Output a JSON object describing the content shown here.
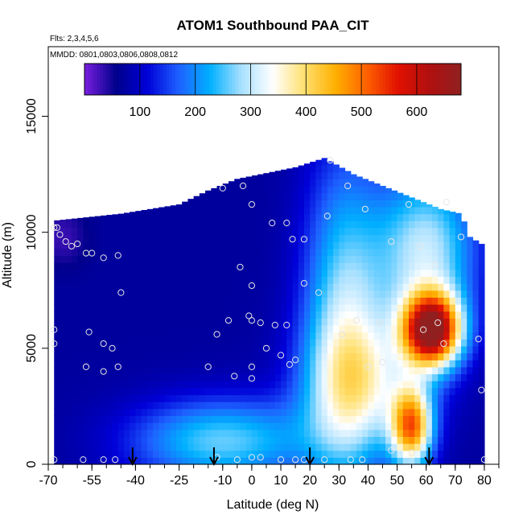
{
  "chart_data": {
    "type": "heatmap",
    "title": "ATOM1 Southbound PAA_CIT",
    "notes": [
      "Flts: 2,3,4,5,6",
      "MMDD: 0801,0803,0806,0808,0812"
    ],
    "xlabel": "Latitude (deg N)",
    "ylabel": "Altitude (m)",
    "xlim": [
      -70,
      85
    ],
    "ylim": [
      0,
      18000
    ],
    "x_ticks_major": [
      -70,
      -55,
      -40,
      -25,
      -10,
      0,
      10,
      20,
      30,
      40,
      50,
      60,
      70,
      80
    ],
    "x_tick_labels": [
      "-70",
      "-55",
      "-40",
      "-25",
      "-10",
      "0",
      "10",
      "20",
      "30",
      "40",
      "50",
      "60",
      "70",
      "80"
    ],
    "y_ticks": [
      0,
      5000,
      10000,
      15000
    ],
    "y_tick_labels": [
      "0",
      "5000",
      "10000",
      "15000"
    ],
    "colorbar": {
      "range": [
        0,
        680
      ],
      "ticks": [
        100,
        200,
        300,
        400,
        500,
        600
      ],
      "tick_labels": [
        "100",
        "200",
        "300",
        "400",
        "500",
        "600"
      ],
      "colors": [
        "#7a1fe0",
        "#00008b",
        "#0000d8",
        "#1e60ff",
        "#00b0ff",
        "#a8e0ff",
        "#ffffff",
        "#ffe070",
        "#ffb000",
        "#ff6000",
        "#e01000",
        "#b01010",
        "#902020"
      ]
    },
    "value_field": {
      "lat_range": [
        -68,
        79
      ],
      "top_profile": [
        [
          -68,
          10500
        ],
        [
          -45,
          10800
        ],
        [
          -25,
          11200
        ],
        [
          -15,
          11800
        ],
        [
          -5,
          12300
        ],
        [
          15,
          12800
        ],
        [
          25,
          13200
        ],
        [
          35,
          12500
        ],
        [
          45,
          12000
        ],
        [
          55,
          11500
        ],
        [
          65,
          11000
        ],
        [
          72,
          10800
        ],
        [
          75,
          9800
        ],
        [
          79,
          9500
        ]
      ],
      "background": 70,
      "anomalies": [
        {
          "lat": 62,
          "alt": 5800,
          "sigma_lat": 7,
          "sigma_alt": 1100,
          "amp": 560
        },
        {
          "lat": 60,
          "alt": 9200,
          "sigma_lat": 12,
          "sigma_alt": 2500,
          "amp": 230
        },
        {
          "lat": 55,
          "alt": 1600,
          "sigma_lat": 5,
          "sigma_alt": 1200,
          "amp": 380
        },
        {
          "lat": 32,
          "alt": 6000,
          "sigma_lat": 10,
          "sigma_alt": 5000,
          "amp": 210
        },
        {
          "lat": -10,
          "alt": 1000,
          "sigma_lat": 22,
          "sigma_alt": 1300,
          "amp": 190
        },
        {
          "lat": 40,
          "alt": 3500,
          "sigma_lat": 15,
          "sigma_alt": 2000,
          "amp": 170
        },
        {
          "lat": -65,
          "alt": 9800,
          "sigma_lat": 6,
          "sigma_alt": 900,
          "amp": -40
        }
      ]
    },
    "sample_points": [
      [
        -68,
        10200
      ],
      [
        -67,
        10200
      ],
      [
        -66,
        9900
      ],
      [
        -64,
        9600
      ],
      [
        -62,
        9400
      ],
      [
        -60,
        9500
      ],
      [
        -57,
        9100
      ],
      [
        -55,
        9100
      ],
      [
        -51,
        8900
      ],
      [
        -46,
        9000
      ],
      [
        -45,
        7400
      ],
      [
        -68,
        5800
      ],
      [
        -68,
        5200
      ],
      [
        -56,
        5700
      ],
      [
        -51,
        5200
      ],
      [
        -48,
        5000
      ],
      [
        -57,
        4200
      ],
      [
        -51,
        4000
      ],
      [
        -46,
        4200
      ],
      [
        -68,
        200
      ],
      [
        -58,
        200
      ],
      [
        -51,
        200
      ],
      [
        -47,
        200
      ],
      [
        -10,
        11900
      ],
      [
        -3,
        12000
      ],
      [
        -8,
        6200
      ],
      [
        -12,
        5600
      ],
      [
        -15,
        4200
      ],
      [
        -6,
        3800
      ],
      [
        0,
        4200
      ],
      [
        0,
        3700
      ],
      [
        0,
        11200
      ],
      [
        0,
        7700
      ],
      [
        -1,
        6400
      ],
      [
        0,
        6200
      ],
      [
        3,
        6100
      ],
      [
        8,
        6000
      ],
      [
        12,
        6000
      ],
      [
        5,
        5000
      ],
      [
        10,
        4700
      ],
      [
        13,
        4300
      ],
      [
        15,
        4500
      ],
      [
        -4,
        8500
      ],
      [
        7,
        10400
      ],
      [
        12,
        10400
      ],
      [
        14,
        9700
      ],
      [
        18,
        9700
      ],
      [
        18,
        7800
      ],
      [
        23,
        7400
      ],
      [
        26,
        10700
      ],
      [
        31,
        5600
      ],
      [
        36,
        6200
      ],
      [
        40,
        4200
      ],
      [
        44,
        6100
      ],
      [
        45,
        4400
      ],
      [
        48,
        9600
      ],
      [
        54,
        11200
      ],
      [
        58,
        9400
      ],
      [
        59,
        5800
      ],
      [
        63,
        8600
      ],
      [
        64,
        6100
      ],
      [
        66,
        5200
      ],
      [
        67,
        11300
      ],
      [
        72,
        9800
      ],
      [
        27,
        13100
      ],
      [
        33,
        12000
      ],
      [
        39,
        11000
      ],
      [
        78,
        5400
      ],
      [
        79,
        3200
      ],
      [
        48,
        600
      ],
      [
        55,
        500
      ],
      [
        80,
        200
      ],
      [
        -12,
        300
      ],
      [
        -5,
        200
      ],
      [
        0,
        300
      ],
      [
        3,
        300
      ],
      [
        10,
        200
      ],
      [
        15,
        200
      ],
      [
        18,
        200
      ],
      [
        25,
        200
      ],
      [
        34,
        200
      ],
      [
        38,
        200
      ]
    ],
    "arrows_lat": [
      -41,
      -13,
      20,
      61
    ]
  }
}
